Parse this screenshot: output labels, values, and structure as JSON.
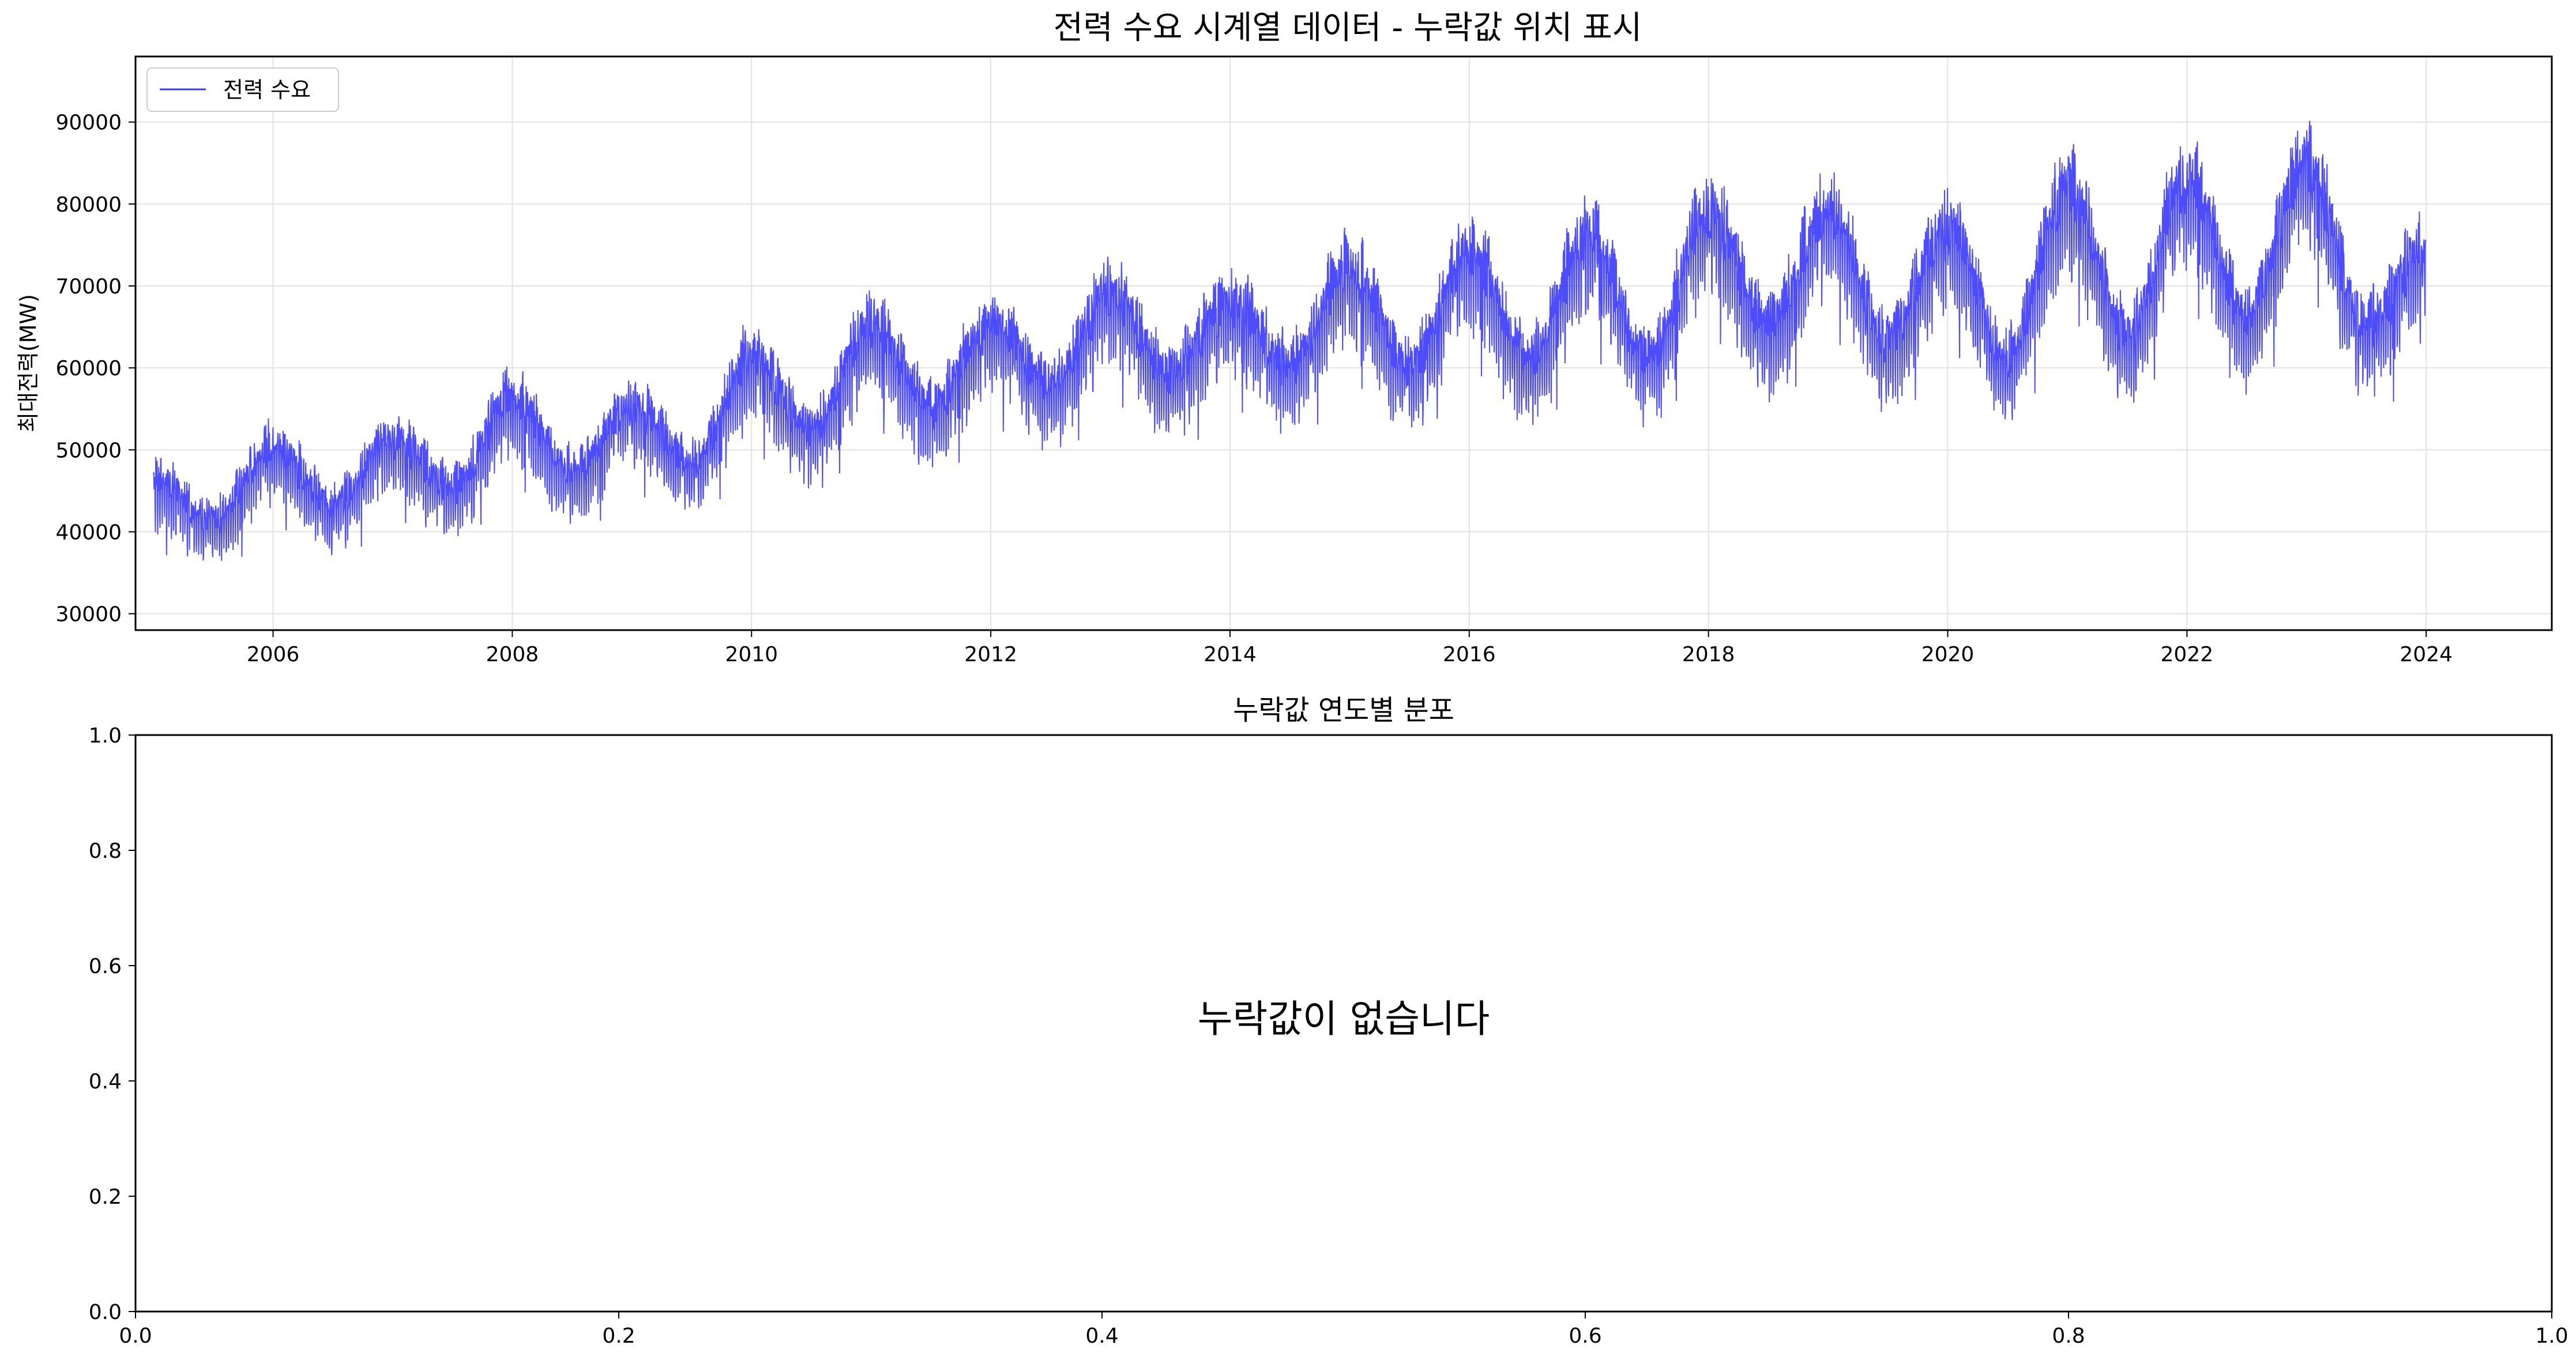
{
  "chart_data": [
    {
      "type": "line",
      "title": "전력 수요 시계열 데이터 - 누락값 위치 표시",
      "xlabel": "",
      "ylabel": "최대전력(MW)",
      "xlim": [
        2004.85,
        2025.05
      ],
      "ylim": [
        28000,
        98000
      ],
      "x_ticks": [
        "2006",
        "2008",
        "2010",
        "2012",
        "2014",
        "2016",
        "2018",
        "2020",
        "2022",
        "2024"
      ],
      "y_ticks": [
        "30000",
        "40000",
        "50000",
        "60000",
        "70000",
        "80000",
        "90000"
      ],
      "grid": true,
      "legend": {
        "placement": "top-left",
        "entries": [
          "전력 수요"
        ]
      },
      "color": "#3a3aff",
      "x_start": "2005-01-01",
      "x_end": "2023-12-31",
      "resolution": "daily",
      "series": [
        {
          "name": "전력 수요",
          "x": [
            2005.0,
            2005.5,
            2006.0,
            2006.5,
            2007.0,
            2007.5,
            2008.0,
            2008.5,
            2009.0,
            2009.5,
            2010.0,
            2010.5,
            2011.0,
            2011.5,
            2012.0,
            2012.5,
            2013.0,
            2013.5,
            2014.0,
            2014.5,
            2015.0,
            2015.5,
            2016.0,
            2016.5,
            2017.0,
            2017.5,
            2018.0,
            2018.5,
            2019.0,
            2019.5,
            2020.0,
            2020.5,
            2021.0,
            2021.5,
            2022.0,
            2022.5,
            2023.0,
            2023.5,
            2024.0
          ],
          "values": [
            47000,
            42000,
            51000,
            44000,
            52000,
            46000,
            57000,
            48000,
            56000,
            49000,
            62000,
            53000,
            66000,
            56000,
            66000,
            59000,
            70000,
            60000,
            69000,
            61000,
            73000,
            61000,
            75000,
            62000,
            77000,
            62000,
            80000,
            66000,
            80000,
            64000,
            78000,
            62000,
            83000,
            65000,
            84000,
            67000,
            86000,
            66000,
            75000
          ]
        }
      ]
    },
    {
      "type": "bar",
      "title": "누락값 연도별 분포",
      "xlabel": "",
      "ylabel": "",
      "xlim": [
        0.0,
        1.0
      ],
      "ylim": [
        0.0,
        1.0
      ],
      "x_ticks": [
        "0.0",
        "0.2",
        "0.4",
        "0.6",
        "0.8",
        "1.0"
      ],
      "y_ticks": [
        "0.0",
        "0.2",
        "0.4",
        "0.6",
        "0.8",
        "1.0"
      ],
      "grid": false,
      "annotation": "누락값이 없습니다",
      "series": []
    }
  ]
}
